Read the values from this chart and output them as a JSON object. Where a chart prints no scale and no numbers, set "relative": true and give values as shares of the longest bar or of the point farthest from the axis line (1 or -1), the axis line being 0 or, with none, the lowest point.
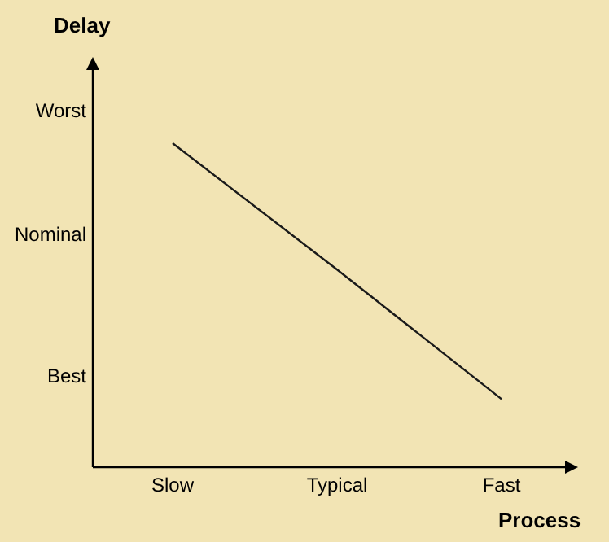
{
  "chart_data": {
    "type": "line",
    "xlabel": "Process",
    "ylabel": "Delay",
    "relative": true,
    "categories": [
      "Slow",
      "Typical",
      "Fast"
    ],
    "values": [
      1,
      0.61,
      0.21
    ],
    "color": "#1a1a1a",
    "annotations": [
      "Worst",
      "Nominal",
      "Best"
    ],
    "marker": "none",
    "line_style": "solid"
  }
}
